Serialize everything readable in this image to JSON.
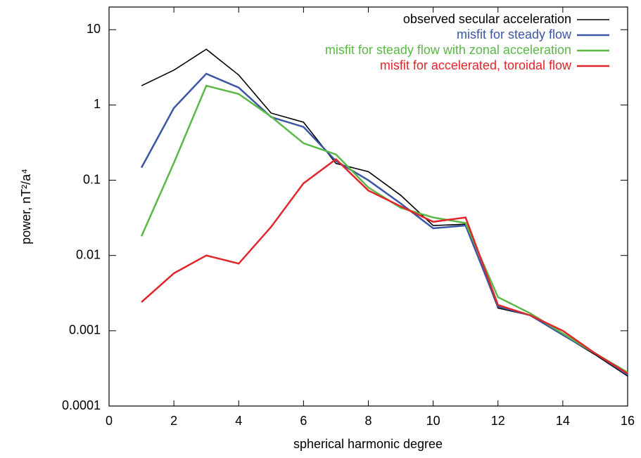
{
  "chart_data": {
    "type": "line",
    "xlabel": "spherical harmonic degree",
    "ylabel": "power, nT²/a⁴",
    "x": [
      1,
      2,
      3,
      4,
      5,
      6,
      7,
      8,
      9,
      10,
      11,
      12,
      13,
      14,
      15,
      16
    ],
    "series": [
      {
        "name": "observed secular acceleration",
        "color": "#000000",
        "values": [
          1.8,
          2.9,
          5.5,
          2.5,
          0.78,
          0.59,
          0.167,
          0.13,
          0.063,
          0.025,
          0.026,
          0.002,
          0.0016,
          0.00088,
          0.00048,
          0.00025
        ]
      },
      {
        "name": "misfit for steady flow",
        "color": "#3a56a5",
        "values": [
          0.147,
          0.91,
          2.6,
          1.7,
          0.69,
          0.51,
          0.18,
          0.1,
          0.049,
          0.023,
          0.025,
          0.0021,
          0.0016,
          0.00088,
          0.0005,
          0.00026
        ]
      },
      {
        "name": "misfit for steady flow with zonal acceleration",
        "color": "#5ab946",
        "values": [
          0.018,
          0.17,
          1.8,
          1.4,
          0.7,
          0.31,
          0.22,
          0.08,
          0.043,
          0.032,
          0.027,
          0.0028,
          0.0017,
          0.00092,
          0.0005,
          0.00028
        ]
      },
      {
        "name": "misfit for accelerated, toroidal flow",
        "color": "#e0262b",
        "values": [
          0.0024,
          0.0058,
          0.01,
          0.0078,
          0.024,
          0.091,
          0.19,
          0.073,
          0.045,
          0.028,
          0.032,
          0.0022,
          0.0016,
          0.001,
          0.0005,
          0.00027
        ]
      }
    ],
    "xlim": [
      0,
      16
    ],
    "xticks": [
      0,
      2,
      4,
      6,
      8,
      10,
      12,
      14,
      16
    ],
    "ylim": [
      0.0001,
      20
    ],
    "yticks": [
      0.0001,
      0.001,
      0.01,
      0.1,
      1,
      10
    ],
    "log_y": true,
    "legend": "top-right"
  }
}
